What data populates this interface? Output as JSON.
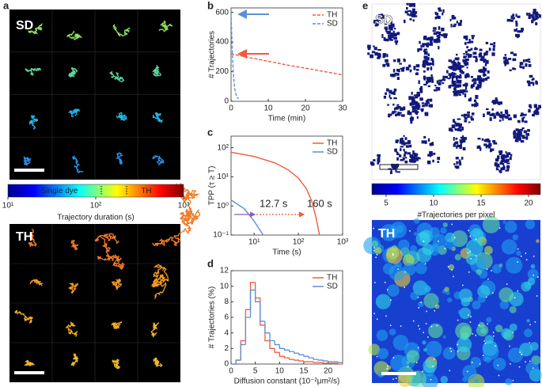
{
  "panels": {
    "labels": [
      "a",
      "b",
      "c",
      "d",
      "e"
    ]
  },
  "panel_a": {
    "top_label": "SD",
    "bottom_label": "TH",
    "colorbar": {
      "lim": [
        10,
        1000
      ],
      "log": true,
      "ticks": [
        {
          "value": 10,
          "label": "10¹"
        },
        {
          "value": 100,
          "label": "10²"
        },
        {
          "value": 1000,
          "label": "10³"
        }
      ],
      "left_text": "Single dye",
      "right_text": "TH",
      "title": "Trajectory duration (s)"
    }
  },
  "panel_e": {
    "top_label": "SD",
    "bottom_label": "TH",
    "colorbar": {
      "lim": [
        3.5,
        21.25
      ],
      "ticks": [
        5,
        10,
        15,
        20
      ],
      "title": "#Trajectories per pixel"
    }
  },
  "chart_data": [
    {
      "type": "line",
      "xlabel": "Time (min)",
      "ylabel": "# Trajectories",
      "xlim": [
        0,
        30
      ],
      "xticks": [
        0,
        10,
        20,
        30
      ],
      "ylim": [
        0,
        630
      ],
      "yticks": [
        0,
        200,
        400,
        600
      ],
      "legend": "upper right",
      "series": [
        {
          "name": "TH",
          "color": "#f05a3c",
          "dash": true,
          "x": [
            0,
            2,
            4,
            6,
            8,
            10,
            12,
            14,
            16,
            18,
            20,
            22,
            24,
            26,
            28,
            30
          ],
          "values": [
            320,
            310,
            300,
            290,
            280,
            270,
            260,
            250,
            240,
            232,
            223,
            215,
            205,
            197,
            188,
            178
          ]
        },
        {
          "name": "SD",
          "color": "#5b8fd8",
          "dash": true,
          "x": [
            0,
            0.2,
            0.4,
            0.6,
            0.8,
            1,
            1.3,
            1.6,
            2
          ],
          "values": [
            600,
            450,
            300,
            200,
            130,
            80,
            50,
            30,
            15
          ]
        }
      ]
    },
    {
      "type": "line",
      "xlabel": "Time (s)",
      "ylabel": "TPP (τ ≥ T)",
      "log_x": true,
      "log_y": true,
      "xlim": [
        3,
        1000
      ],
      "xticks": [
        {
          "value": 10,
          "label": "10¹"
        },
        {
          "value": 100,
          "label": "10²"
        },
        {
          "value": 1000,
          "label": "10³"
        }
      ],
      "ylim": [
        0.1,
        250
      ],
      "yticks": [
        {
          "value": 0.1,
          "label": "10⁻¹"
        },
        {
          "value": 1,
          "label": "10⁰"
        },
        {
          "value": 10,
          "label": "10¹"
        },
        {
          "value": 100,
          "label": "10²"
        }
      ],
      "legend": "upper right",
      "annotations": [
        "12.7 s",
        "160 s"
      ],
      "series": [
        {
          "name": "TH",
          "color": "#f05a3c",
          "x": [
            3,
            10,
            30,
            60,
            100,
            150,
            200,
            250,
            300
          ],
          "values": [
            70,
            50,
            30,
            17,
            9,
            4,
            1.5,
            0.4,
            0.1
          ]
        },
        {
          "name": "SD",
          "color": "#5b8fd8",
          "x": [
            3,
            6,
            10,
            16
          ],
          "values": [
            1.6,
            0.8,
            0.3,
            0.1
          ]
        }
      ]
    },
    {
      "type": "histogram",
      "xlabel": "Diffusion constant (10⁻²μm²/s)",
      "ylabel": "# Trajectories (%)",
      "xlim": [
        0,
        23
      ],
      "xticks": [
        0,
        5,
        10,
        15,
        20
      ],
      "ylim": [
        0,
        12
      ],
      "yticks": [
        0,
        2,
        4,
        6,
        8,
        10,
        12
      ],
      "legend": "upper right",
      "bins": [
        0,
        1,
        2,
        3,
        4,
        5,
        6,
        7,
        8,
        9,
        10,
        11,
        12,
        13,
        14,
        15,
        16,
        17,
        18,
        19,
        20,
        21,
        22,
        23
      ],
      "series": [
        {
          "name": "TH",
          "color": "#f05a3c",
          "values": [
            0,
            0.5,
            3,
            7,
            10.5,
            8.5,
            5,
            3,
            2,
            1.5,
            1,
            0.8,
            0.6,
            0.5,
            0.4,
            0.3,
            0.3,
            0.2,
            0.2,
            0.1,
            0.1,
            0.1,
            0
          ]
        },
        {
          "name": "SD",
          "color": "#5b8fd8",
          "values": [
            0,
            0.5,
            2.5,
            6,
            9.5,
            8,
            5.5,
            4,
            3,
            2.5,
            2,
            1.8,
            1.6,
            1.4,
            1.2,
            1,
            0.8,
            0.6,
            0.5,
            0.4,
            0.3,
            0.3,
            0.2
          ]
        }
      ]
    }
  ]
}
